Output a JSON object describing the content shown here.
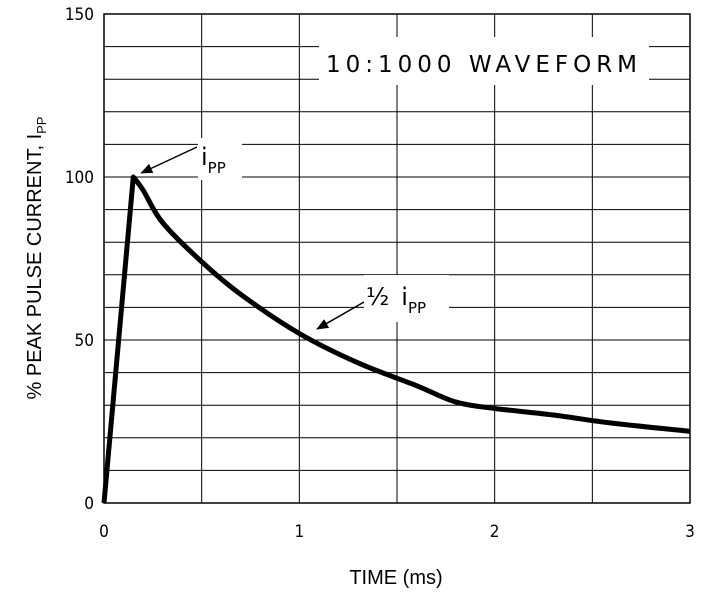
{
  "chart_data": {
    "type": "line",
    "title": "10:1000 WAVEFORM",
    "xlabel": "TIME (ms)",
    "ylabel_main": "% PEAK PULSE CURRENT, I",
    "ylabel_sub": "PP",
    "xlim": [
      0,
      3
    ],
    "ylim": [
      0,
      150
    ],
    "x_ticks": [
      0,
      1,
      2,
      3
    ],
    "x_tick_labels": [
      "0",
      "1",
      "2",
      "3"
    ],
    "y_ticks": [
      0,
      50,
      100,
      150
    ],
    "y_tick_labels": [
      "0",
      "50",
      "100",
      "150"
    ],
    "grid": true,
    "grid_x_step": 0.5,
    "grid_y_step": 10,
    "series": [
      {
        "x": [
          0,
          0.15,
          0.2,
          0.3,
          0.5,
          0.7,
          1.0,
          1.3,
          1.6,
          1.8,
          2.0,
          2.3,
          2.6,
          3.0
        ],
        "y": [
          0,
          100,
          96,
          86,
          74,
          64,
          52,
          43,
          36,
          31,
          29,
          27,
          24.5,
          22
        ]
      }
    ],
    "annotations": [
      {
        "main": "i",
        "sub": "PP",
        "point_x": 0.16,
        "point_y": 100
      },
      {
        "prefix": "½",
        "main": "i",
        "sub": "PP",
        "point_x": 1.05,
        "point_y": 54
      }
    ]
  },
  "colors": {
    "line": "#000000",
    "grid": "#000000",
    "background": "#ffffff"
  }
}
